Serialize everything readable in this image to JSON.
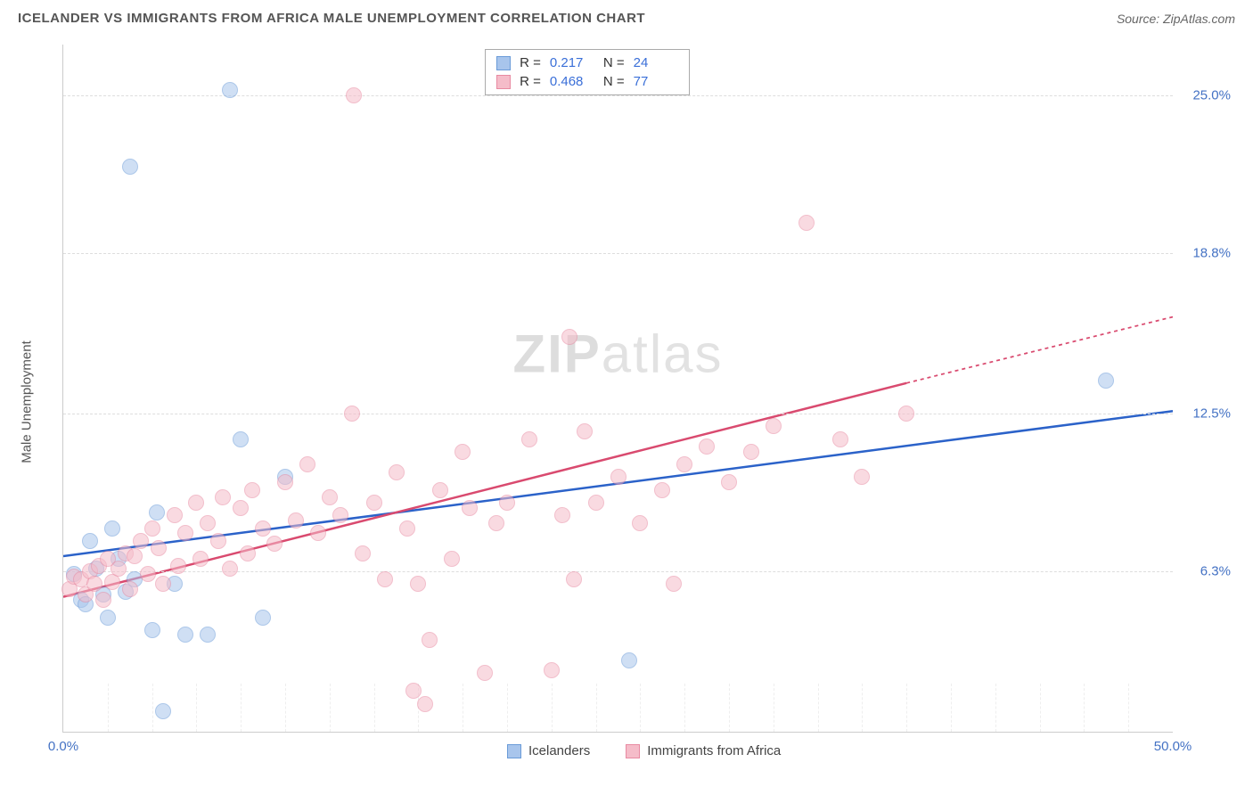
{
  "header": {
    "title": "ICELANDER VS IMMIGRANTS FROM AFRICA MALE UNEMPLOYMENT CORRELATION CHART",
    "source": "Source: ZipAtlas.com"
  },
  "chart": {
    "type": "scatter",
    "ylabel": "Male Unemployment",
    "watermark": {
      "bold": "ZIP",
      "light": "atlas"
    },
    "xlim": [
      0,
      50
    ],
    "ylim": [
      0,
      27
    ],
    "xticks": [
      {
        "v": 0,
        "label": "0.0%"
      },
      {
        "v": 50,
        "label": "50.0%"
      }
    ],
    "yticks": [
      {
        "v": 6.3,
        "label": "6.3%"
      },
      {
        "v": 12.5,
        "label": "12.5%"
      },
      {
        "v": 18.8,
        "label": "18.8%"
      },
      {
        "v": 25.0,
        "label": "25.0%"
      }
    ],
    "xgrid_minor": [
      2,
      4,
      6,
      8,
      10,
      12,
      14,
      16,
      18,
      20,
      22,
      24,
      26,
      28,
      30,
      32,
      34,
      36,
      38,
      40,
      42,
      44,
      46,
      48
    ],
    "background_color": "#ffffff",
    "grid_color": "#dddddd",
    "series": [
      {
        "key": "icelanders",
        "label": "Icelanders",
        "color_fill": "#a8c5ec",
        "color_stroke": "#6a9bd8",
        "R": "0.217",
        "N": "24",
        "trend": {
          "x1": 0,
          "y1": 6.9,
          "x2": 50,
          "y2": 12.6,
          "color": "#2b62c9",
          "width": 2.5
        },
        "points": [
          [
            0.5,
            6.2
          ],
          [
            0.8,
            5.2
          ],
          [
            1.0,
            5.0
          ],
          [
            1.2,
            7.5
          ],
          [
            1.5,
            6.4
          ],
          [
            2.0,
            4.5
          ],
          [
            2.2,
            8.0
          ],
          [
            2.8,
            5.5
          ],
          [
            3.0,
            22.2
          ],
          [
            3.2,
            6.0
          ],
          [
            4.0,
            4.0
          ],
          [
            4.2,
            8.6
          ],
          [
            4.5,
            0.8
          ],
          [
            5.0,
            5.8
          ],
          [
            5.5,
            3.8
          ],
          [
            6.5,
            3.8
          ],
          [
            7.5,
            25.2
          ],
          [
            8.0,
            11.5
          ],
          [
            9.0,
            4.5
          ],
          [
            10.0,
            10.0
          ],
          [
            25.5,
            2.8
          ],
          [
            47.0,
            13.8
          ],
          [
            1.8,
            5.4
          ],
          [
            2.5,
            6.8
          ]
        ]
      },
      {
        "key": "immigrants",
        "label": "Immigrants from Africa",
        "color_fill": "#f5bcc9",
        "color_stroke": "#e88aa2",
        "R": "0.468",
        "N": "77",
        "trend": {
          "x1": 0,
          "y1": 5.3,
          "x2": 38,
          "y2": 13.7,
          "color": "#d94a6f",
          "width": 2.5,
          "dash_x1": 38,
          "dash_y1": 13.7,
          "dash_x2": 50,
          "dash_y2": 16.3
        },
        "points": [
          [
            0.3,
            5.6
          ],
          [
            0.5,
            6.1
          ],
          [
            0.8,
            6.0
          ],
          [
            1.0,
            5.4
          ],
          [
            1.2,
            6.3
          ],
          [
            1.4,
            5.8
          ],
          [
            1.6,
            6.5
          ],
          [
            1.8,
            5.2
          ],
          [
            2.0,
            6.8
          ],
          [
            2.2,
            5.9
          ],
          [
            2.5,
            6.4
          ],
          [
            2.8,
            7.0
          ],
          [
            3.0,
            5.6
          ],
          [
            3.2,
            6.9
          ],
          [
            3.5,
            7.5
          ],
          [
            3.8,
            6.2
          ],
          [
            4.0,
            8.0
          ],
          [
            4.3,
            7.2
          ],
          [
            4.5,
            5.8
          ],
          [
            5.0,
            8.5
          ],
          [
            5.2,
            6.5
          ],
          [
            5.5,
            7.8
          ],
          [
            6.0,
            9.0
          ],
          [
            6.2,
            6.8
          ],
          [
            6.5,
            8.2
          ],
          [
            7.0,
            7.5
          ],
          [
            7.2,
            9.2
          ],
          [
            7.5,
            6.4
          ],
          [
            8.0,
            8.8
          ],
          [
            8.3,
            7.0
          ],
          [
            8.5,
            9.5
          ],
          [
            9.0,
            8.0
          ],
          [
            9.5,
            7.4
          ],
          [
            10.0,
            9.8
          ],
          [
            10.5,
            8.3
          ],
          [
            11.0,
            10.5
          ],
          [
            11.5,
            7.8
          ],
          [
            12.0,
            9.2
          ],
          [
            12.5,
            8.5
          ],
          [
            13.0,
            12.5
          ],
          [
            13.1,
            25.0
          ],
          [
            13.5,
            7.0
          ],
          [
            14.0,
            9.0
          ],
          [
            14.5,
            6.0
          ],
          [
            15.0,
            10.2
          ],
          [
            15.5,
            8.0
          ],
          [
            15.8,
            1.6
          ],
          [
            16.0,
            5.8
          ],
          [
            16.3,
            1.1
          ],
          [
            16.5,
            3.6
          ],
          [
            17.0,
            9.5
          ],
          [
            17.5,
            6.8
          ],
          [
            18.0,
            11.0
          ],
          [
            18.3,
            8.8
          ],
          [
            19.0,
            2.3
          ],
          [
            19.5,
            8.2
          ],
          [
            20.0,
            9.0
          ],
          [
            21.0,
            11.5
          ],
          [
            22.0,
            2.4
          ],
          [
            22.5,
            8.5
          ],
          [
            22.8,
            15.5
          ],
          [
            23.0,
            6.0
          ],
          [
            23.5,
            11.8
          ],
          [
            24.0,
            9.0
          ],
          [
            25.0,
            10.0
          ],
          [
            26.0,
            8.2
          ],
          [
            27.0,
            9.5
          ],
          [
            27.5,
            5.8
          ],
          [
            28.0,
            10.5
          ],
          [
            29.0,
            11.2
          ],
          [
            30.0,
            9.8
          ],
          [
            31.0,
            11.0
          ],
          [
            32.0,
            12.0
          ],
          [
            33.5,
            20.0
          ],
          [
            35.0,
            11.5
          ],
          [
            36.0,
            10.0
          ],
          [
            38.0,
            12.5
          ]
        ]
      }
    ],
    "bottom_legend": [
      {
        "swatch_fill": "#a8c5ec",
        "swatch_stroke": "#6a9bd8",
        "label": "Icelanders"
      },
      {
        "swatch_fill": "#f5bcc9",
        "swatch_stroke": "#e88aa2",
        "label": "Immigrants from Africa"
      }
    ]
  }
}
